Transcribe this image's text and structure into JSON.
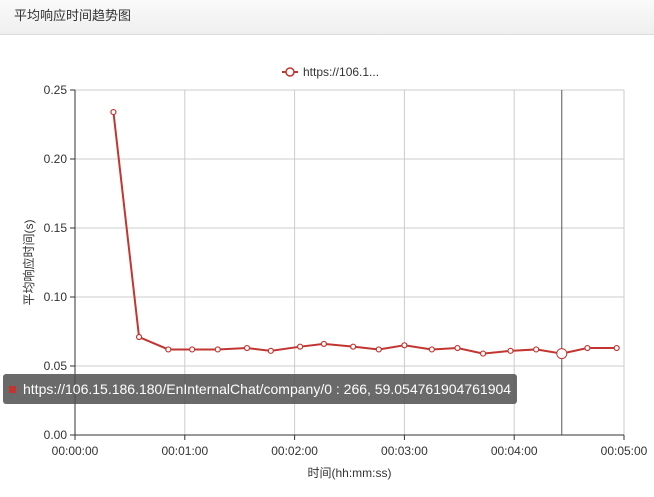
{
  "panel": {
    "title": "平均响应时间趋势图"
  },
  "colors": {
    "series": "#c23531",
    "grid": "#cccccc",
    "axis": "#333333"
  },
  "tooltip": {
    "text": "https://106.15.186.180/EnInternalChat/company/0 : 266, 59.054761904761904"
  },
  "chart_data": {
    "type": "line",
    "xlabel": "时间(hh:mm:ss)",
    "ylabel": "平均响应时间(s)",
    "xlim": [
      0,
      300
    ],
    "ylim": [
      0,
      0.25
    ],
    "x_ticks": [
      {
        "v": 0,
        "label": "00:00:00"
      },
      {
        "v": 60,
        "label": "00:01:00"
      },
      {
        "v": 120,
        "label": "00:02:00"
      },
      {
        "v": 180,
        "label": "00:03:00"
      },
      {
        "v": 240,
        "label": "00:04:00"
      },
      {
        "v": 300,
        "label": "00:05:00"
      }
    ],
    "y_ticks": [
      {
        "v": 0,
        "label": "0.00"
      },
      {
        "v": 0.05,
        "label": "0.05"
      },
      {
        "v": 0.1,
        "label": "0.10"
      },
      {
        "v": 0.15,
        "label": "0.15"
      },
      {
        "v": 0.2,
        "label": "0.20"
      },
      {
        "v": 0.25,
        "label": "0.25"
      }
    ],
    "legend": {
      "label": "https://106.1...",
      "position": "top-center"
    },
    "highlight_x": 266,
    "series": [
      {
        "name": "https://106.1...",
        "x": [
          21,
          35,
          51,
          64,
          78,
          94,
          107,
          123,
          136,
          152,
          166,
          180,
          195,
          209,
          223,
          238,
          252,
          266,
          280,
          296
        ],
        "y": [
          0.234,
          0.071,
          0.062,
          0.062,
          0.062,
          0.063,
          0.061,
          0.064,
          0.066,
          0.064,
          0.062,
          0.065,
          0.062,
          0.063,
          0.059,
          0.061,
          0.062,
          0.059,
          0.063,
          0.063
        ]
      }
    ]
  }
}
